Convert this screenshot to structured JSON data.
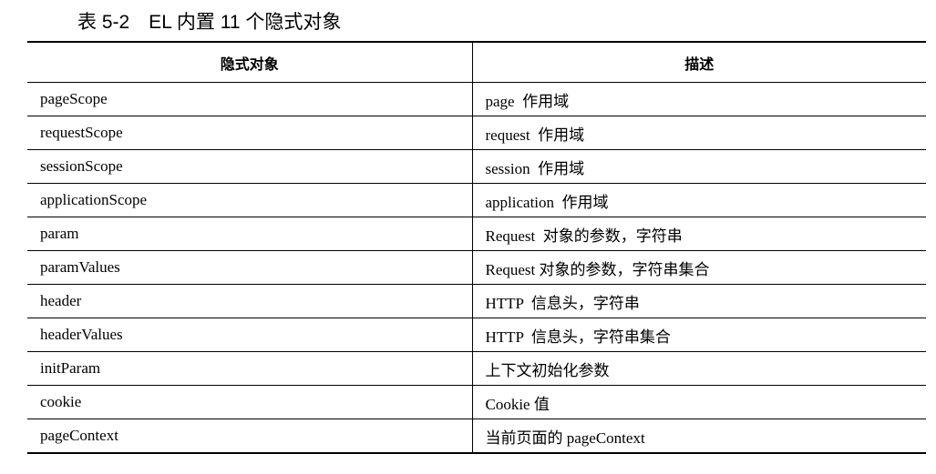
{
  "title": "表 5-2　EL 内置 11 个隐式对象",
  "table": {
    "headers": [
      "隐式对象",
      "描述"
    ],
    "rows": [
      [
        "pageScope",
        "page  作用域"
      ],
      [
        "requestScope",
        "request  作用域"
      ],
      [
        "sessionScope",
        "session  作用域"
      ],
      [
        "applicationScope",
        "application  作用域"
      ],
      [
        "param",
        "Request  对象的参数，字符串"
      ],
      [
        "paramValues",
        "Request 对象的参数，字符串集合"
      ],
      [
        "header",
        "HTTP  信息头，字符串"
      ],
      [
        "headerValues",
        "HTTP  信息头，字符串集合"
      ],
      [
        "initParam",
        "上下文初始化参数"
      ],
      [
        "cookie",
        "Cookie 值"
      ],
      [
        "pageContext",
        "当前页面的 pageContext"
      ]
    ]
  }
}
